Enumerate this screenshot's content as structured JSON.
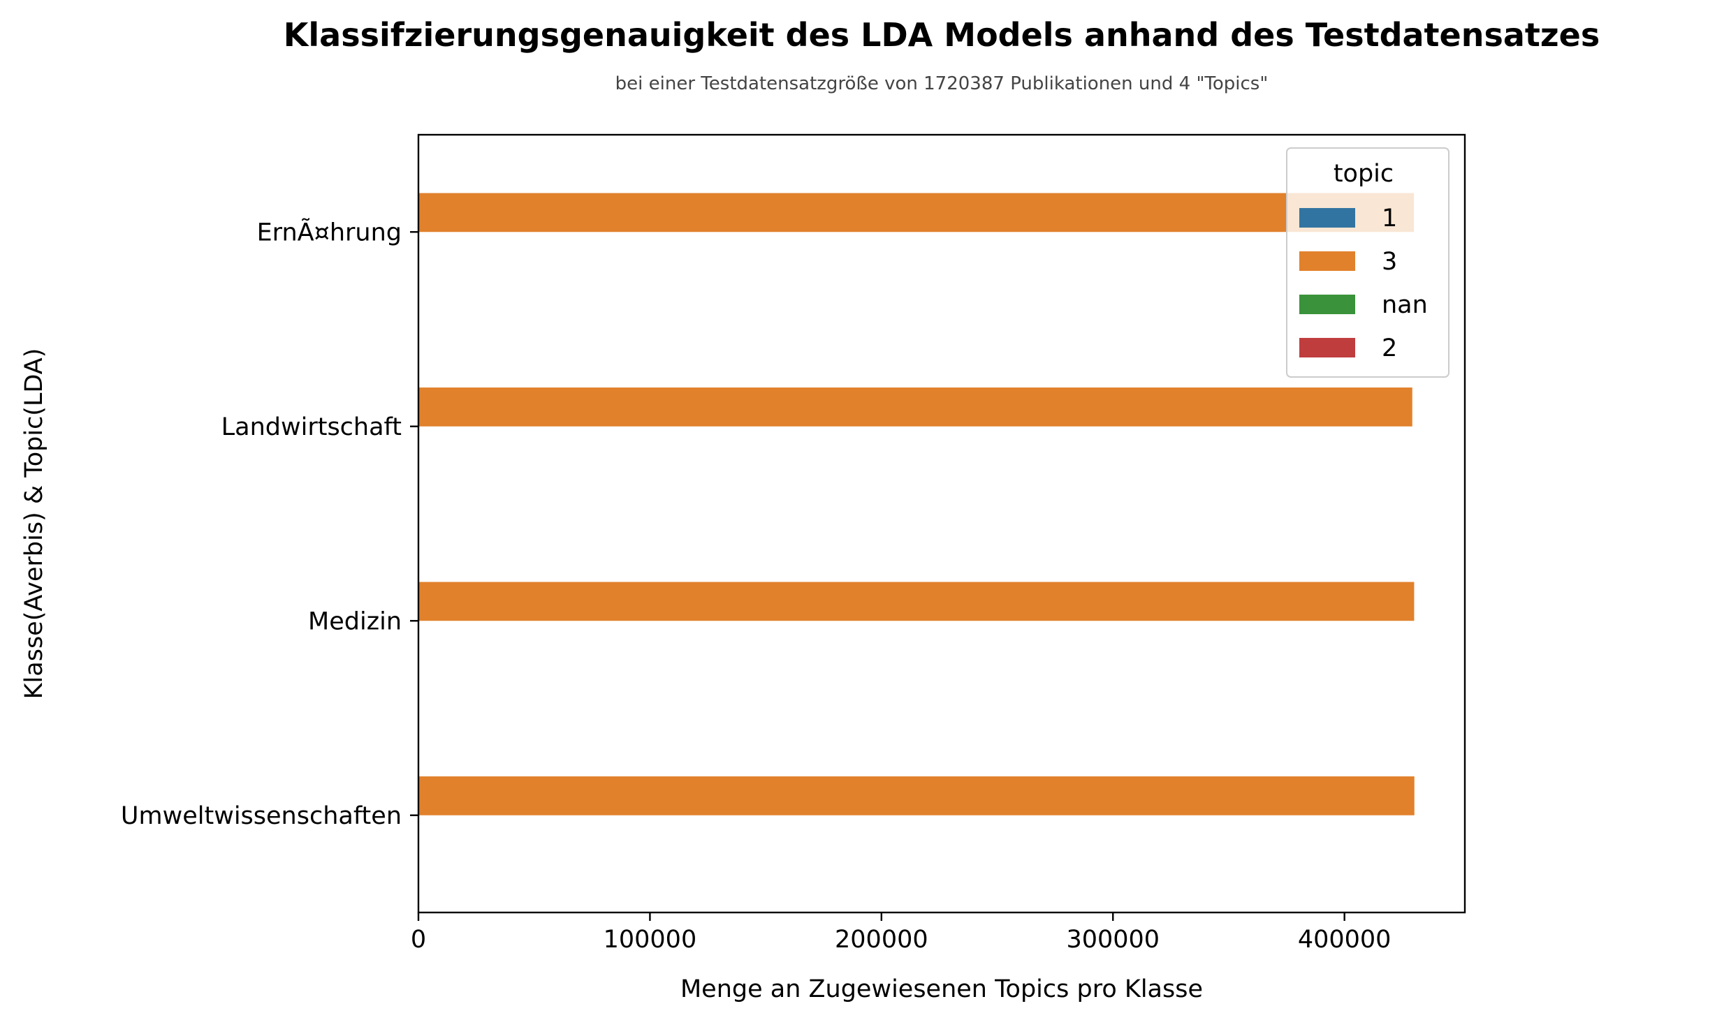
{
  "chart_data": {
    "type": "bar",
    "orientation": "horizontal",
    "title": "Klassifzierungsgenauigkeit des LDA Models anhand des Testdatensatzes",
    "subtitle": "bei einer Testdatensatzgröße von 1720387 Publikationen und 4 \"Topics\"",
    "xlabel": "Menge an Zugewiesenen Topics pro Klasse",
    "ylabel": "Klasse(Averbis) & Topic(LDA)",
    "xlim": [
      0,
      452000
    ],
    "xticks": [
      0,
      100000,
      200000,
      300000,
      400000
    ],
    "xtick_labels": [
      "0",
      "100000",
      "200000",
      "300000",
      "400000"
    ],
    "categories": [
      "ErnÃ¤hrung",
      "Landwirtschaft",
      "Medizin",
      "Umweltwissenschaften"
    ],
    "grid": false,
    "legend": {
      "title": "topic",
      "position": "top-right"
    },
    "series": [
      {
        "name": "1",
        "color": "#3274a1",
        "values": [
          0,
          0,
          0,
          0
        ]
      },
      {
        "name": "3",
        "color": "#e1812c",
        "values": [
          430000,
          429300,
          430100,
          430200
        ]
      },
      {
        "name": "nan",
        "color": "#3a923a",
        "values": [
          0,
          0,
          0,
          0
        ]
      },
      {
        "name": "2",
        "color": "#c03d3e",
        "values": [
          0,
          0,
          0,
          0
        ]
      }
    ]
  }
}
